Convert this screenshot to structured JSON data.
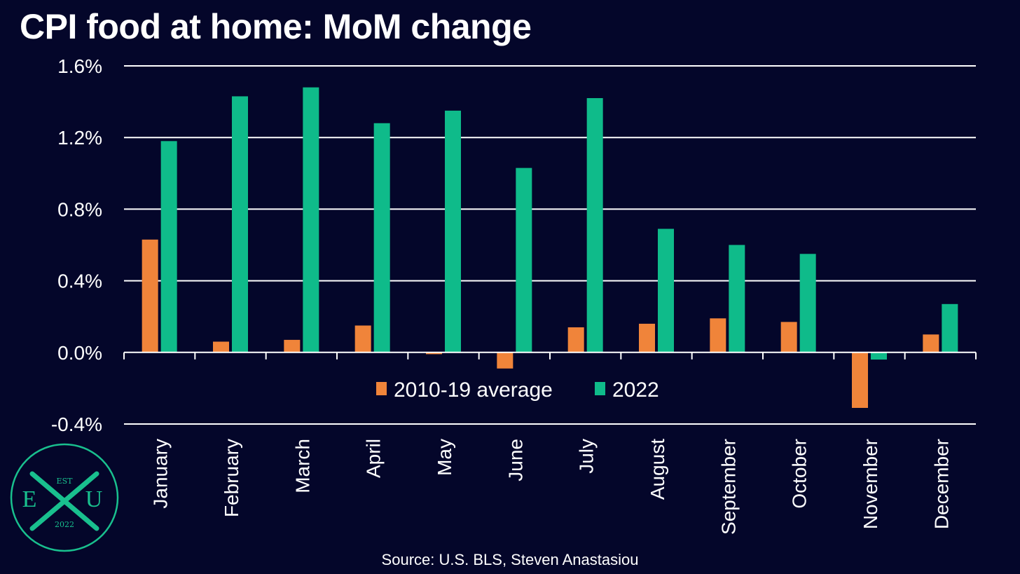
{
  "title": "CPI food at home: MoM change",
  "source": "Source: U.S. BLS, Steven Anastasiou",
  "logo": {
    "top": "EST",
    "left": "E",
    "right": "U",
    "bottom": "2022",
    "color": "#19c08e"
  },
  "chart_data": {
    "type": "bar",
    "categories": [
      "January",
      "February",
      "March",
      "April",
      "May",
      "June",
      "July",
      "August",
      "September",
      "October",
      "November",
      "December"
    ],
    "series": [
      {
        "name": "2010-19 average",
        "color": "#f0843a",
        "values": [
          0.63,
          0.06,
          0.07,
          0.15,
          -0.01,
          -0.09,
          0.14,
          0.16,
          0.19,
          0.17,
          -0.31,
          0.1
        ]
      },
      {
        "name": "2022",
        "color": "#0fbb8a",
        "values": [
          1.18,
          1.43,
          1.48,
          1.28,
          1.35,
          1.03,
          1.42,
          0.69,
          0.6,
          0.55,
          -0.04,
          0.27
        ]
      }
    ],
    "ylim": [
      -0.4,
      1.6
    ],
    "yticks": [
      "1.6%",
      "1.2%",
      "0.8%",
      "0.4%",
      "0.0%",
      "-0.4%"
    ],
    "ytick_values": [
      1.6,
      1.2,
      0.8,
      0.4,
      0.0,
      -0.4
    ],
    "grid": true,
    "legend_position": "bottom-center inside plot"
  }
}
